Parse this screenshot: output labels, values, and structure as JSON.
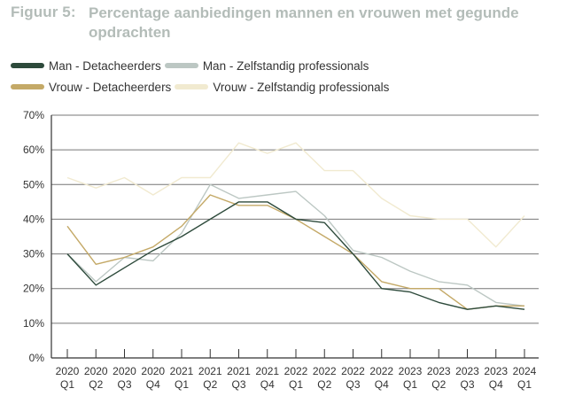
{
  "header": {
    "figure_label": "Figuur 5:",
    "title": "Percentage aanbiedingen mannen en vrouwen met gegunde opdrachten"
  },
  "colors": {
    "man_det": "#2d4a3b",
    "man_zzp": "#bcc7c3",
    "vrouw_det": "#c4a967",
    "vrouw_zzp": "#f1ead0",
    "title": "#b3bcb8",
    "axis": "#333333",
    "grid": "#777777"
  },
  "chart_data": {
    "type": "line",
    "x": [
      "2020 Q1",
      "2020 Q2",
      "2020 Q3",
      "2020 Q4",
      "2021 Q1",
      "2021 Q2",
      "2021 Q3",
      "2021 Q4",
      "2022 Q1",
      "2022 Q2",
      "2022 Q3",
      "2022 Q4",
      "2023 Q1",
      "2023 Q2",
      "2023 Q3",
      "2023 Q4",
      "2024 Q1"
    ],
    "x_ticks": [
      [
        "2020",
        "Q1"
      ],
      [
        "2020",
        "Q2"
      ],
      [
        "2020",
        "Q3"
      ],
      [
        "2020",
        "Q4"
      ],
      [
        "2021",
        "Q1"
      ],
      [
        "2021",
        "Q2"
      ],
      [
        "2021",
        "Q3"
      ],
      [
        "2021",
        "Q4"
      ],
      [
        "2022",
        "Q1"
      ],
      [
        "2022",
        "Q2"
      ],
      [
        "2022",
        "Q3"
      ],
      [
        "2022",
        "Q4"
      ],
      [
        "2023",
        "Q1"
      ],
      [
        "2023",
        "Q2"
      ],
      [
        "2023",
        "Q3"
      ],
      [
        "2023",
        "Q4"
      ],
      [
        "2024",
        "Q1"
      ]
    ],
    "y_ticks": [
      "0%",
      "10%",
      "20%",
      "30%",
      "40%",
      "50%",
      "60%",
      "70%"
    ],
    "ylim": [
      0,
      70
    ],
    "grid": true,
    "legend_position": "top-left",
    "series": [
      {
        "name": "Man - Detacheerders",
        "color_key": "man_det",
        "values": [
          30,
          21,
          26,
          31,
          35,
          40,
          45,
          45,
          40,
          39,
          30,
          20,
          19,
          16,
          14,
          15,
          14
        ]
      },
      {
        "name": "Man - Zelfstandig professionals",
        "color_key": "man_zzp",
        "values": [
          30,
          22,
          29,
          28,
          36,
          50,
          46,
          47,
          48,
          41,
          31,
          29,
          25,
          22,
          21,
          16,
          15
        ]
      },
      {
        "name": "Vrouw - Detacheerders",
        "color_key": "vrouw_det",
        "values": [
          38,
          27,
          29,
          32,
          38,
          47,
          44,
          44,
          40,
          35,
          30,
          22,
          20,
          20,
          14,
          15,
          15
        ]
      },
      {
        "name": "Vrouw - Zelfstandig professionals",
        "color_key": "vrouw_zzp",
        "values": [
          52,
          49,
          52,
          47,
          52,
          52,
          62,
          59,
          62,
          54,
          54,
          46,
          41,
          40,
          40,
          32,
          41
        ]
      }
    ]
  }
}
